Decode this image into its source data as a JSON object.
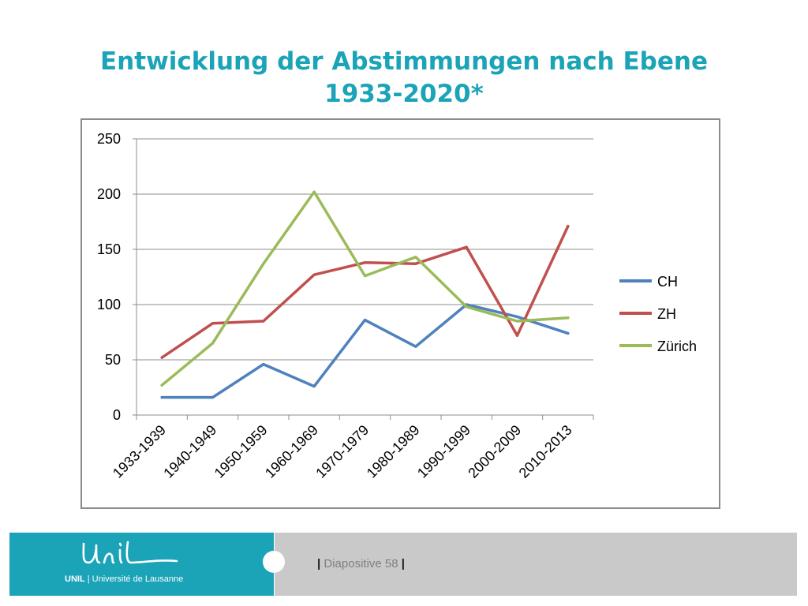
{
  "slide": {
    "title_line1": "Entwicklung der Abstimmungen nach Ebene",
    "title_line2": "1933-2020*",
    "footer_org_bold": "UNIL",
    "footer_org_rest": " | Université de Lausanne",
    "slide_number_label": "Diapositive 58"
  },
  "colors": {
    "title": "#1ba3b7",
    "footer_teal": "#1ba3b7",
    "footer_grey": "#c9c9c9"
  },
  "chart_data": {
    "type": "line",
    "categories": [
      "1933-1939",
      "1940-1949",
      "1950-1959",
      "1960-1969",
      "1970-1979",
      "1980-1989",
      "1990-1999",
      "2000-2009",
      "2010-2013"
    ],
    "ylim": [
      0,
      250
    ],
    "yticks": [
      0,
      50,
      100,
      150,
      200,
      250
    ],
    "grid": true,
    "legend_position": "right",
    "series": [
      {
        "name": "CH",
        "color": "#4f81bd",
        "values": [
          16,
          16,
          46,
          26,
          86,
          62,
          100,
          89,
          74
        ]
      },
      {
        "name": "ZH",
        "color": "#c0504d",
        "values": [
          52,
          83,
          85,
          127,
          138,
          137,
          152,
          72,
          171
        ]
      },
      {
        "name": "Zürich",
        "color": "#9bbb59",
        "values": [
          27,
          65,
          137,
          202,
          126,
          143,
          98,
          85,
          88
        ]
      }
    ]
  }
}
